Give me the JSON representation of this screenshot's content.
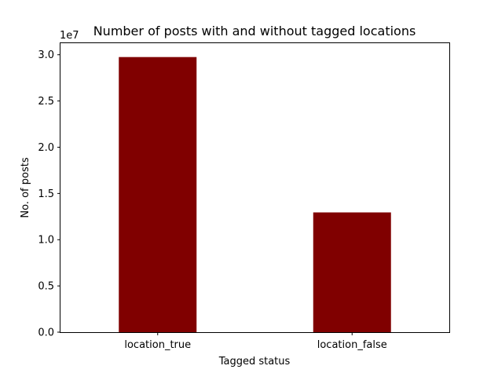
{
  "chart_data": {
    "type": "bar",
    "title": "Number of posts with and without tagged locations",
    "xlabel": "Tagged status",
    "ylabel": "No. of posts",
    "offset_text": "1e7",
    "categories": [
      "location_true",
      "location_false"
    ],
    "values": [
      29750000,
      12950000
    ],
    "ylim": [
      0,
      31250000
    ],
    "ytick_values": [
      0,
      5000000,
      10000000,
      15000000,
      20000000,
      25000000,
      30000000
    ],
    "ytick_labels": [
      "0.0",
      "0.5",
      "1.0",
      "1.5",
      "2.0",
      "2.5",
      "3.0"
    ],
    "bar_color": "#800000",
    "grid": false,
    "legend": "none"
  }
}
